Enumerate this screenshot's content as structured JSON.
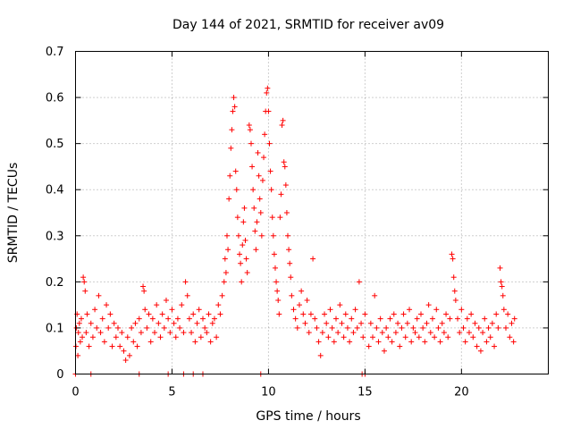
{
  "chart_data": {
    "type": "scatter",
    "title": "Day 144 of 2021, SRMTID for receiver av09",
    "xlabel": "GPS time / hours",
    "ylabel": "SRMTID / TECUs",
    "xlim": [
      0,
      24.5
    ],
    "ylim": [
      0,
      0.7
    ],
    "xticks": [
      0,
      5,
      10,
      15,
      20
    ],
    "xtick_labels": [
      "0",
      "5",
      "10",
      "15",
      "20"
    ],
    "yticks": [
      0,
      0.1,
      0.2,
      0.3,
      0.4,
      0.5,
      0.6,
      0.7
    ],
    "ytick_labels": [
      "0",
      "0.1",
      "0.2",
      "0.3",
      "0.4",
      "0.5",
      "0.6",
      "0.7"
    ],
    "grid": true,
    "marker": "+",
    "series": [
      {
        "name": "SRMTID",
        "color": "#ff0000",
        "points": [
          [
            0.02,
            0.06
          ],
          [
            0.05,
            0.1
          ],
          [
            0.08,
            0.13
          ],
          [
            0.12,
            0.04
          ],
          [
            0.15,
            0.09
          ],
          [
            0.2,
            0.11
          ],
          [
            0.25,
            0.07
          ],
          [
            0.3,
            0.12
          ],
          [
            0.35,
            0.08
          ],
          [
            0.4,
            0.21
          ],
          [
            0.45,
            0.2
          ],
          [
            0.5,
            0.18
          ],
          [
            0.55,
            0.09
          ],
          [
            0.6,
            0.13
          ],
          [
            0.7,
            0.06
          ],
          [
            0.8,
            0.11
          ],
          [
            0.9,
            0.08
          ],
          [
            1.0,
            0.14
          ],
          [
            1.1,
            0.1
          ],
          [
            1.2,
            0.17
          ],
          [
            1.3,
            0.09
          ],
          [
            1.4,
            0.12
          ],
          [
            1.5,
            0.07
          ],
          [
            1.6,
            0.15
          ],
          [
            1.7,
            0.1
          ],
          [
            1.8,
            0.13
          ],
          [
            1.9,
            0.06
          ],
          [
            2.0,
            0.11
          ],
          [
            2.1,
            0.08
          ],
          [
            2.2,
            0.1
          ],
          [
            2.3,
            0.06
          ],
          [
            2.4,
            0.09
          ],
          [
            2.5,
            0.05
          ],
          [
            2.6,
            0.03
          ],
          [
            2.7,
            0.08
          ],
          [
            2.8,
            0.04
          ],
          [
            2.9,
            0.1
          ],
          [
            3.0,
            0.07
          ],
          [
            3.1,
            0.11
          ],
          [
            3.2,
            0.06
          ],
          [
            3.3,
            0.12
          ],
          [
            3.4,
            0.09
          ],
          [
            3.5,
            0.19
          ],
          [
            3.55,
            0.18
          ],
          [
            3.6,
            0.14
          ],
          [
            3.7,
            0.1
          ],
          [
            3.8,
            0.13
          ],
          [
            3.9,
            0.07
          ],
          [
            4.0,
            0.12
          ],
          [
            4.1,
            0.09
          ],
          [
            4.2,
            0.15
          ],
          [
            4.3,
            0.11
          ],
          [
            4.4,
            0.08
          ],
          [
            4.5,
            0.13
          ],
          [
            4.6,
            0.1
          ],
          [
            4.7,
            0.16
          ],
          [
            4.8,
            0.12
          ],
          [
            4.9,
            0.09
          ],
          [
            5.0,
            0.14
          ],
          [
            5.1,
            0.11
          ],
          [
            5.2,
            0.08
          ],
          [
            5.3,
            0.12
          ],
          [
            5.4,
            0.1
          ],
          [
            5.5,
            0.15
          ],
          [
            5.6,
            0.09
          ],
          [
            5.7,
            0.2
          ],
          [
            5.8,
            0.17
          ],
          [
            5.9,
            0.12
          ],
          [
            6.0,
            0.09
          ],
          [
            6.1,
            0.13
          ],
          [
            6.2,
            0.07
          ],
          [
            6.3,
            0.11
          ],
          [
            6.4,
            0.14
          ],
          [
            6.5,
            0.08
          ],
          [
            6.6,
            0.12
          ],
          [
            6.7,
            0.1
          ],
          [
            6.8,
            0.09
          ],
          [
            6.9,
            0.13
          ],
          [
            7.0,
            0.07
          ],
          [
            7.1,
            0.11
          ],
          [
            7.2,
            0.12
          ],
          [
            7.3,
            0.08
          ],
          [
            7.4,
            0.15
          ],
          [
            7.5,
            0.13
          ],
          [
            7.6,
            0.17
          ],
          [
            7.7,
            0.2
          ],
          [
            7.75,
            0.25
          ],
          [
            7.8,
            0.22
          ],
          [
            7.85,
            0.3
          ],
          [
            7.9,
            0.27
          ],
          [
            7.95,
            0.38
          ],
          [
            8.0,
            0.43
          ],
          [
            8.05,
            0.49
          ],
          [
            8.1,
            0.53
          ],
          [
            8.15,
            0.57
          ],
          [
            8.2,
            0.6
          ],
          [
            8.25,
            0.58
          ],
          [
            8.3,
            0.44
          ],
          [
            8.35,
            0.4
          ],
          [
            8.4,
            0.34
          ],
          [
            8.45,
            0.3
          ],
          [
            8.5,
            0.26
          ],
          [
            8.55,
            0.24
          ],
          [
            8.6,
            0.2
          ],
          [
            8.65,
            0.28
          ],
          [
            8.7,
            0.33
          ],
          [
            8.75,
            0.36
          ],
          [
            8.8,
            0.29
          ],
          [
            8.85,
            0.25
          ],
          [
            8.9,
            0.22
          ],
          [
            9.0,
            0.54
          ],
          [
            9.05,
            0.53
          ],
          [
            9.1,
            0.5
          ],
          [
            9.15,
            0.45
          ],
          [
            9.2,
            0.4
          ],
          [
            9.25,
            0.36
          ],
          [
            9.3,
            0.31
          ],
          [
            9.35,
            0.27
          ],
          [
            9.4,
            0.33
          ],
          [
            9.45,
            0.48
          ],
          [
            9.5,
            0.43
          ],
          [
            9.55,
            0.38
          ],
          [
            9.6,
            0.35
          ],
          [
            9.65,
            0.3
          ],
          [
            9.7,
            0.42
          ],
          [
            9.75,
            0.47
          ],
          [
            9.8,
            0.52
          ],
          [
            9.85,
            0.57
          ],
          [
            9.9,
            0.61
          ],
          [
            9.95,
            0.62
          ],
          [
            10.0,
            0.57
          ],
          [
            10.05,
            0.5
          ],
          [
            10.1,
            0.44
          ],
          [
            10.15,
            0.4
          ],
          [
            10.2,
            0.34
          ],
          [
            10.25,
            0.3
          ],
          [
            10.3,
            0.26
          ],
          [
            10.35,
            0.23
          ],
          [
            10.4,
            0.2
          ],
          [
            10.45,
            0.18
          ],
          [
            10.5,
            0.16
          ],
          [
            10.55,
            0.13
          ],
          [
            10.6,
            0.34
          ],
          [
            10.65,
            0.39
          ],
          [
            10.7,
            0.54
          ],
          [
            10.75,
            0.55
          ],
          [
            10.8,
            0.46
          ],
          [
            10.85,
            0.45
          ],
          [
            10.9,
            0.41
          ],
          [
            10.95,
            0.35
          ],
          [
            11.0,
            0.3
          ],
          [
            11.05,
            0.27
          ],
          [
            11.1,
            0.24
          ],
          [
            11.15,
            0.21
          ],
          [
            11.2,
            0.17
          ],
          [
            11.3,
            0.14
          ],
          [
            11.4,
            0.12
          ],
          [
            11.5,
            0.1
          ],
          [
            11.6,
            0.15
          ],
          [
            11.7,
            0.18
          ],
          [
            11.8,
            0.13
          ],
          [
            11.9,
            0.11
          ],
          [
            12.0,
            0.16
          ],
          [
            12.1,
            0.09
          ],
          [
            12.2,
            0.13
          ],
          [
            12.3,
            0.25
          ],
          [
            12.4,
            0.12
          ],
          [
            12.5,
            0.1
          ],
          [
            12.6,
            0.07
          ],
          [
            12.7,
            0.04
          ],
          [
            12.8,
            0.09
          ],
          [
            12.9,
            0.13
          ],
          [
            13.0,
            0.11
          ],
          [
            13.1,
            0.08
          ],
          [
            13.2,
            0.14
          ],
          [
            13.3,
            0.1
          ],
          [
            13.4,
            0.07
          ],
          [
            13.5,
            0.12
          ],
          [
            13.6,
            0.09
          ],
          [
            13.7,
            0.15
          ],
          [
            13.8,
            0.11
          ],
          [
            13.9,
            0.08
          ],
          [
            14.0,
            0.13
          ],
          [
            14.1,
            0.1
          ],
          [
            14.2,
            0.07
          ],
          [
            14.3,
            0.12
          ],
          [
            14.4,
            0.09
          ],
          [
            14.5,
            0.14
          ],
          [
            14.6,
            0.1
          ],
          [
            14.7,
            0.2
          ],
          [
            14.8,
            0.11
          ],
          [
            14.9,
            0.08
          ],
          [
            15.0,
            0.13
          ],
          [
            15.2,
            0.06
          ],
          [
            15.3,
            0.11
          ],
          [
            15.4,
            0.08
          ],
          [
            15.5,
            0.17
          ],
          [
            15.6,
            0.1
          ],
          [
            15.7,
            0.07
          ],
          [
            15.8,
            0.12
          ],
          [
            15.9,
            0.09
          ],
          [
            16.0,
            0.05
          ],
          [
            16.1,
            0.1
          ],
          [
            16.2,
            0.08
          ],
          [
            16.3,
            0.12
          ],
          [
            16.4,
            0.07
          ],
          [
            16.5,
            0.13
          ],
          [
            16.6,
            0.09
          ],
          [
            16.7,
            0.11
          ],
          [
            16.8,
            0.06
          ],
          [
            16.9,
            0.1
          ],
          [
            17.0,
            0.13
          ],
          [
            17.1,
            0.08
          ],
          [
            17.2,
            0.11
          ],
          [
            17.3,
            0.14
          ],
          [
            17.4,
            0.07
          ],
          [
            17.5,
            0.1
          ],
          [
            17.6,
            0.09
          ],
          [
            17.7,
            0.12
          ],
          [
            17.8,
            0.08
          ],
          [
            17.9,
            0.13
          ],
          [
            18.0,
            0.1
          ],
          [
            18.1,
            0.07
          ],
          [
            18.2,
            0.11
          ],
          [
            18.3,
            0.15
          ],
          [
            18.4,
            0.09
          ],
          [
            18.5,
            0.12
          ],
          [
            18.6,
            0.08
          ],
          [
            18.7,
            0.14
          ],
          [
            18.8,
            0.1
          ],
          [
            18.9,
            0.07
          ],
          [
            19.0,
            0.11
          ],
          [
            19.1,
            0.09
          ],
          [
            19.2,
            0.13
          ],
          [
            19.3,
            0.08
          ],
          [
            19.4,
            0.12
          ],
          [
            19.5,
            0.26
          ],
          [
            19.55,
            0.25
          ],
          [
            19.6,
            0.21
          ],
          [
            19.65,
            0.18
          ],
          [
            19.7,
            0.16
          ],
          [
            19.8,
            0.12
          ],
          [
            19.9,
            0.09
          ],
          [
            20.0,
            0.14
          ],
          [
            20.1,
            0.1
          ],
          [
            20.2,
            0.07
          ],
          [
            20.3,
            0.12
          ],
          [
            20.4,
            0.09
          ],
          [
            20.5,
            0.13
          ],
          [
            20.6,
            0.08
          ],
          [
            20.7,
            0.11
          ],
          [
            20.8,
            0.06
          ],
          [
            20.9,
            0.1
          ],
          [
            21.0,
            0.05
          ],
          [
            21.1,
            0.09
          ],
          [
            21.2,
            0.12
          ],
          [
            21.3,
            0.07
          ],
          [
            21.4,
            0.1
          ],
          [
            21.5,
            0.08
          ],
          [
            21.6,
            0.11
          ],
          [
            21.7,
            0.06
          ],
          [
            21.8,
            0.13
          ],
          [
            21.9,
            0.1
          ],
          [
            22.0,
            0.23
          ],
          [
            22.05,
            0.2
          ],
          [
            22.1,
            0.19
          ],
          [
            22.15,
            0.17
          ],
          [
            22.2,
            0.14
          ],
          [
            22.3,
            0.1
          ],
          [
            22.4,
            0.13
          ],
          [
            22.5,
            0.08
          ],
          [
            22.6,
            0.11
          ],
          [
            22.7,
            0.07
          ],
          [
            22.75,
            0.12
          ]
        ],
        "zero_points": [
          0.0,
          0.8,
          3.3,
          4.8,
          5.6,
          6.1,
          6.6,
          9.6,
          14.85,
          15.0
        ]
      }
    ]
  }
}
